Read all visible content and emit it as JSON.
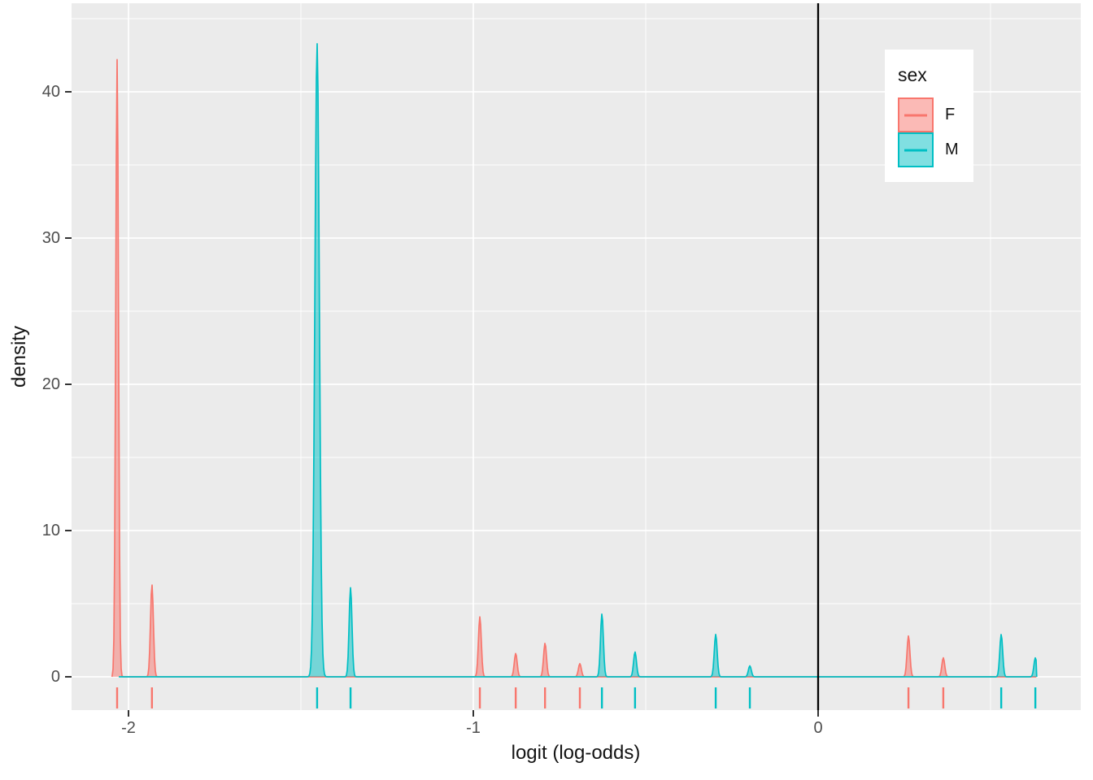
{
  "figure": {
    "x_axis_title": "logit (log-odds)",
    "y_axis_title": "density",
    "x_tick_labels": [
      "-2",
      "-1",
      "0"
    ],
    "y_tick_labels": [
      "0",
      "10",
      "20",
      "30",
      "40"
    ]
  },
  "legend": {
    "title": "sex",
    "entries": [
      {
        "label": "F",
        "line_color": "#F8766D",
        "fill_color": "#FBBAB6"
      },
      {
        "label": "M",
        "line_color": "#00BFC4",
        "fill_color": "#80DFE1"
      }
    ]
  },
  "chart_data": {
    "type": "area",
    "subtype": "density-with-rug",
    "title": "",
    "xlabel": "logit (log-odds)",
    "ylabel": "density",
    "xlim": [
      -2.165,
      0.762
    ],
    "ylim": [
      -2.3,
      46.1
    ],
    "x_major_ticks": [
      -2,
      -1,
      0
    ],
    "x_minor_ticks": [
      -1.5,
      -0.5,
      0.5
    ],
    "y_major_ticks": [
      0,
      10,
      20,
      30,
      40
    ],
    "y_minor_ticks": [
      5,
      15,
      25,
      35,
      45
    ],
    "grid": true,
    "panel_color": "#EBEBEB",
    "grid_color": "#FFFFFF",
    "reference_vline_x": 0,
    "reference_vline_color": "#000000",
    "fill_alpha": 0.5,
    "legend_position": "inside-top-right",
    "series": [
      {
        "name": "F",
        "color": "#F8766D",
        "curve_range": [
          -2.048,
          0.633
        ],
        "peaks": [
          {
            "x": -2.033,
            "height": 42.2,
            "bw": 0.004
          },
          {
            "x": -1.932,
            "height": 6.3,
            "bw": 0.0042
          },
          {
            "x": -0.981,
            "height": 4.1,
            "bw": 0.0042
          },
          {
            "x": -0.877,
            "height": 1.6,
            "bw": 0.0042
          },
          {
            "x": -0.792,
            "height": 2.3,
            "bw": 0.0042
          },
          {
            "x": -0.691,
            "height": 0.9,
            "bw": 0.0042
          },
          {
            "x": 0.262,
            "height": 2.8,
            "bw": 0.0042
          },
          {
            "x": 0.363,
            "height": 1.3,
            "bw": 0.0042
          }
        ],
        "rug": [
          -2.033,
          -1.932,
          -0.981,
          -0.877,
          -0.792,
          -0.691,
          0.262,
          0.363
        ]
      },
      {
        "name": "M",
        "color": "#00BFC4",
        "curve_range": [
          -2.028,
          0.634
        ],
        "peaks": [
          {
            "x": -1.453,
            "height": 43.3,
            "bw": 0.0065
          },
          {
            "x": -1.356,
            "height": 6.1,
            "bw": 0.0042
          },
          {
            "x": -0.627,
            "height": 4.3,
            "bw": 0.0042
          },
          {
            "x": -0.531,
            "height": 1.7,
            "bw": 0.0042
          },
          {
            "x": -0.297,
            "height": 2.9,
            "bw": 0.0042
          },
          {
            "x": -0.198,
            "height": 0.75,
            "bw": 0.0042
          },
          {
            "x": 0.531,
            "height": 2.9,
            "bw": 0.0042
          },
          {
            "x": 0.63,
            "height": 1.3,
            "bw": 0.0042
          }
        ],
        "rug": [
          -1.453,
          -1.356,
          -0.627,
          -0.531,
          -0.297,
          -0.198,
          0.531,
          0.63
        ]
      }
    ]
  }
}
